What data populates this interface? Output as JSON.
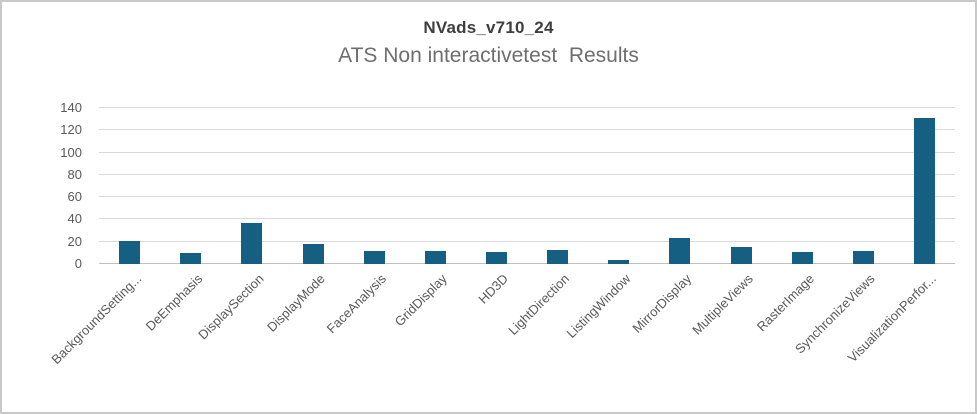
{
  "chart_data": {
    "type": "bar",
    "title": "NVads_v710_24",
    "subtitle": "ATS Non interactivetest  Results",
    "categories": [
      "BackgroundSetting...",
      "DeEmphasis",
      "DisplaySection",
      "DisplayMode",
      "FaceAnalysis",
      "GridDisplay",
      "HD3D",
      "LightDirection",
      "ListingWindow",
      "MirrorDisplay",
      "MultipleViews",
      "RasterImage",
      "SynchronizeViews",
      "VisualizationPerfor..."
    ],
    "values": [
      21,
      10,
      37,
      18,
      12,
      12,
      11,
      13,
      4,
      23,
      15,
      11,
      12,
      131
    ],
    "xlabel": "",
    "ylabel": "",
    "ylim": [
      0,
      140
    ],
    "yticks": [
      0,
      20,
      40,
      60,
      80,
      100,
      120,
      140
    ],
    "grid": "horizontal",
    "legend": "none",
    "bar_color": "#156082"
  },
  "colors": {
    "bar": "#156082",
    "gridline": "#d9d9d9",
    "axis_line": "#c0c0c0",
    "tick_label": "#595959",
    "title": "#3f3f3f",
    "subtitle": "#6e6e6e",
    "frame_border": "#c9c9c9",
    "background": "#ffffff"
  }
}
